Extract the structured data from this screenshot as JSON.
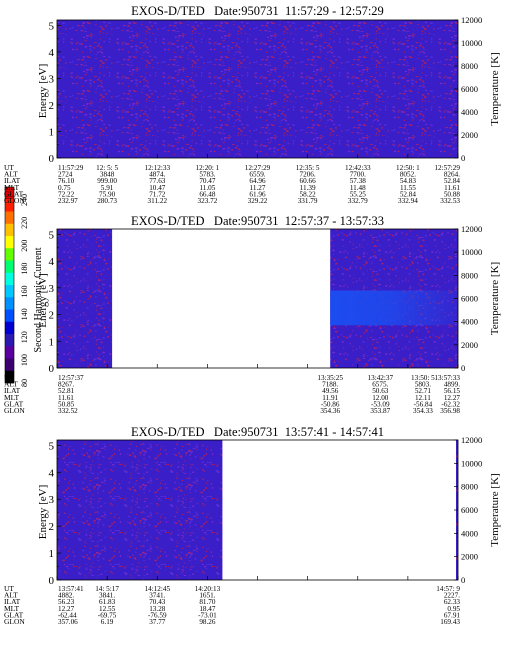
{
  "figure": {
    "colorbar": {
      "label": "Second Harmonic Current",
      "ticks": [
        "240",
        "220",
        "200",
        "180",
        "160",
        "140",
        "120",
        "100",
        "80"
      ],
      "colors": [
        "#000000",
        "#3a0070",
        "#5a00a0",
        "#2a1ab0",
        "#0000d0",
        "#0050ff",
        "#0090ff",
        "#00c8ff",
        "#00ffe0",
        "#00ff70",
        "#60ff00",
        "#ffff00",
        "#ffc000",
        "#ff7000",
        "#ff2000",
        "#e00000"
      ]
    }
  },
  "chart_data": [
    {
      "type": "heatmap",
      "title": "EXOS-D/TED   Date:950731  11:57:29 - 12:57:29",
      "ylabel": "Energy [eV]",
      "y2label": "Temperature [K]",
      "ylim": [
        0,
        5.2
      ],
      "yticks": [
        "0",
        "1",
        "2",
        "3",
        "4",
        "5"
      ],
      "y2lim": [
        0,
        12000
      ],
      "y2ticks": [
        "0",
        "2000",
        "4000",
        "6000",
        "8000",
        "10000",
        "12000"
      ],
      "colors": {
        "background": "#3a1ec8",
        "speckle_red": "#b02060",
        "speckle_purple": "#7a2ad0",
        "speckle_blue": "#5030e0",
        "enhanced": "#1c4cf0"
      },
      "filled_columns": [
        [
          0,
          8
        ]
      ],
      "enhanced_region": null,
      "row_labels": [
        "UT",
        "ALT",
        "ILAT",
        "MLT",
        "GLAT",
        "GLON"
      ],
      "columns": [
        {
          "at": 0,
          "values": [
            "11:57:29",
            "2724",
            "76.10",
            "0.75",
            "72.22",
            "232.97"
          ]
        },
        {
          "at": 1,
          "values": [
            "12: 5: 5",
            "3848",
            "999.00",
            "5.91",
            "75.90",
            "280.73"
          ]
        },
        {
          "at": 2,
          "values": [
            "12:12:33",
            "4874.",
            "77.63",
            "10.47",
            "71.72",
            "311.22"
          ]
        },
        {
          "at": 3,
          "values": [
            "12:20: 1",
            "5783.",
            "70.47",
            "11.05",
            "66.48",
            "323.72"
          ]
        },
        {
          "at": 4,
          "values": [
            "12:27:29",
            "6559.",
            "64.96",
            "11.27",
            "61.96",
            "329.22"
          ]
        },
        {
          "at": 5,
          "values": [
            "12:35: 5",
            "7206.",
            "60.66",
            "11.39",
            "58.22",
            "331.79"
          ]
        },
        {
          "at": 6,
          "values": [
            "12:42:33",
            "7700.",
            "57.38",
            "11.48",
            "55.25",
            "332.79"
          ]
        },
        {
          "at": 7,
          "values": [
            "12:50: 1",
            "8052.",
            "54.83",
            "11.55",
            "52.84",
            "332.94"
          ]
        },
        {
          "at": 8,
          "values": [
            "12:57:29",
            "8264.",
            "52.84",
            "11.61",
            "50.88",
            "332.53"
          ]
        }
      ]
    },
    {
      "type": "heatmap",
      "title": "EXOS-D/TED   Date:950731  12:57:37 - 13:57:33",
      "ylabel": "Energy [eV]",
      "y2label": "Temperature [K]",
      "ylim": [
        0,
        5.2
      ],
      "yticks": [
        "0",
        "1",
        "2",
        "3",
        "4",
        "5"
      ],
      "y2lim": [
        0,
        12000
      ],
      "y2ticks": [
        "0",
        "2000",
        "4000",
        "6000",
        "8000",
        "10000",
        "12000"
      ],
      "colors": {
        "background": "#3a1ec8",
        "speckle_red": "#b02060",
        "speckle_purple": "#7a2ad0",
        "speckle_blue": "#5030e0",
        "enhanced": "#1c4cf0"
      },
      "filled_columns": [
        [
          0,
          1.1
        ],
        [
          5.45,
          8
        ]
      ],
      "enhanced_region": {
        "col_from": 5.45,
        "col_to": 8,
        "energy_from": 1.6,
        "energy_to": 2.9
      },
      "row_labels": [
        "UT",
        "ALT",
        "ILAT",
        "MLT",
        "GLAT",
        "GLON"
      ],
      "columns": [
        {
          "at": 0,
          "values": [
            "12:57:37",
            "8267.",
            "52.81",
            "11.61",
            "50.85",
            "332.52"
          ]
        },
        {
          "at": 5.45,
          "values": [
            "13:35:25",
            "7188.",
            "49.56",
            "11.91",
            "-50.86",
            "354.36"
          ]
        },
        {
          "at": 6.45,
          "values": [
            "13:42:37",
            "6575.",
            "50.63",
            "12.00",
            "-53.09",
            "353.87"
          ]
        },
        {
          "at": 7.3,
          "values": [
            "13:50: 5",
            "5803.",
            "52.71",
            "12.11",
            "-56.84",
            "354.33"
          ]
        },
        {
          "at": 8,
          "values": [
            "13:57:33",
            "4899.",
            "56.15",
            "12.27",
            "-62.32",
            "356.98"
          ]
        }
      ]
    },
    {
      "type": "heatmap",
      "title": "EXOS-D/TED   Date:950731  13:57:41 - 14:57:41",
      "ylabel": "Energy [eV]",
      "y2label": "Temperature [K]",
      "ylim": [
        0,
        5.2
      ],
      "yticks": [
        "0",
        "1",
        "2",
        "3",
        "4",
        "5"
      ],
      "y2lim": [
        0,
        12000
      ],
      "y2ticks": [
        "0",
        "2000",
        "4000",
        "6000",
        "8000",
        "10000",
        "12000"
      ],
      "colors": {
        "background": "#3a1ec8",
        "speckle_red": "#b02060",
        "speckle_purple": "#7a2ad0",
        "speckle_blue": "#5030e0",
        "enhanced": "#1c4cf0"
      },
      "filled_columns": [
        [
          0,
          3.3
        ],
        [
          7.96,
          8
        ]
      ],
      "enhanced_region": null,
      "row_labels": [
        "UT",
        "ALT",
        "ILAT",
        "MLT",
        "GLAT",
        "GLON"
      ],
      "columns": [
        {
          "at": 0,
          "values": [
            "13:57:41",
            "4882.",
            "56.23",
            "12.27",
            "-62.44",
            "357.06"
          ]
        },
        {
          "at": 1,
          "values": [
            "14: 5:17",
            "3841.",
            "61.83",
            "12.55",
            "-69.75",
            "6.19"
          ]
        },
        {
          "at": 2,
          "values": [
            "14:12:45",
            "3741.",
            "70.43",
            "13.28",
            "-76.59",
            "37.77"
          ]
        },
        {
          "at": 3,
          "values": [
            "14:20:13",
            "1651.",
            "81.70",
            "18.47",
            "-73.01",
            "98.26"
          ]
        },
        {
          "at": 8,
          "values": [
            "14:57: 9",
            "2227.",
            "62.33",
            "0.95",
            "67.91",
            "169.43"
          ]
        }
      ]
    }
  ]
}
